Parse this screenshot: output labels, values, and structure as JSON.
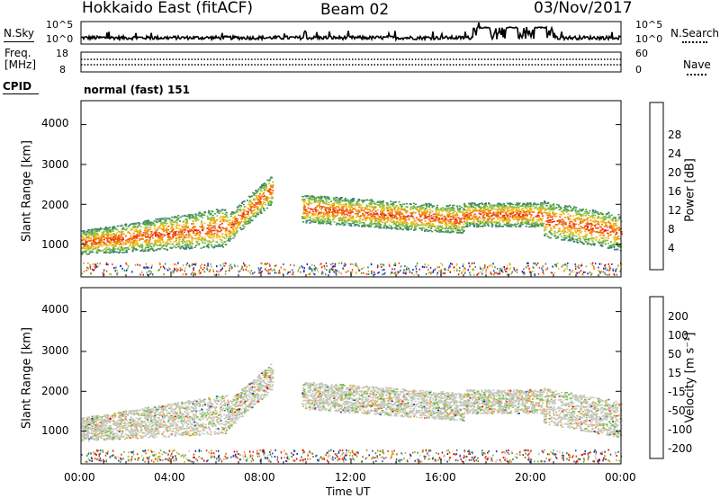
{
  "title": {
    "station": "Hokkaido East (fitACF)",
    "beam": "Beam 02",
    "date": "03/Nov/2017"
  },
  "noise_panel": {
    "left_label": "N.Sky",
    "right_label": "N.Search",
    "left_ticks": [
      "10^5",
      "10^0"
    ],
    "right_ticks": [
      "10^5",
      "10^0"
    ]
  },
  "freq_panel": {
    "label_line1": "Freq.",
    "label_line2": "[MHz]",
    "left_ticks": [
      "18",
      "8"
    ],
    "right_ticks": [
      "60",
      "0"
    ],
    "right_label": "Nave"
  },
  "cpid": {
    "label": "CPID",
    "value": "normal (fast) 151"
  },
  "x_axis": {
    "ticks": [
      "00:00",
      "04:00",
      "08:00",
      "12:00",
      "16:00",
      "20:00",
      "00:00"
    ],
    "label": "Time UT"
  },
  "chart_data": [
    {
      "type": "heatmap",
      "variable": "Power",
      "ylabel": "Slant Range [km]",
      "yticks": [
        "1000",
        "2000",
        "3000",
        "4000"
      ],
      "ylim": [
        180,
        4600
      ],
      "xlim_hours": [
        0,
        24
      ],
      "colorbar": {
        "label": "Power [dB]",
        "ticks": [
          "4",
          "8",
          "12",
          "16",
          "20",
          "24",
          "28"
        ],
        "colors": [
          "#0018e8",
          "#2448b4",
          "#3a7a86",
          "#4a9a4a",
          "#88c048",
          "#f0c020",
          "#f08c10",
          "#f05010",
          "#e81010"
        ]
      }
    },
    {
      "type": "heatmap",
      "variable": "Velocity",
      "ylabel": "Slant Range [km]",
      "yticks": [
        "1000",
        "2000",
        "3000",
        "4000"
      ],
      "ylim": [
        180,
        4600
      ],
      "xlim_hours": [
        0,
        24
      ],
      "colorbar": {
        "label": "Velocity [m s⁻¹]",
        "ticks": [
          "200",
          "100",
          "50",
          "15",
          "-15",
          "-50",
          "-100",
          "-200"
        ],
        "colors": [
          "#1e2aa8",
          "#2a5a9a",
          "#3a8a3a",
          "#66c030",
          "#c8c8c0",
          "#f0a020",
          "#f07010",
          "#e83010",
          "#e80000"
        ]
      }
    }
  ]
}
